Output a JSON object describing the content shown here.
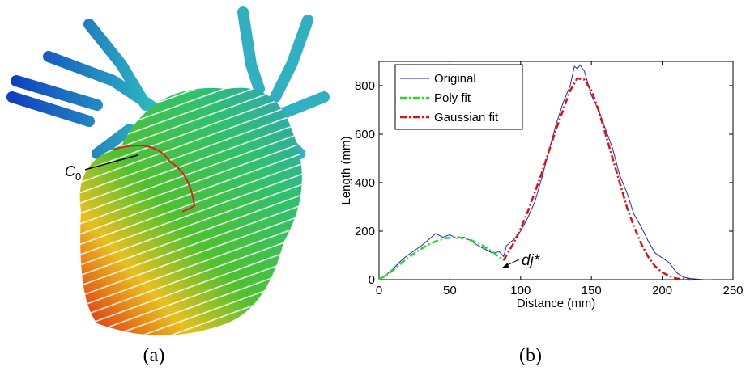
{
  "figure_a": {
    "label": "C",
    "label_sub": "0",
    "caption": "(a)"
  },
  "chart_data": {
    "type": "line",
    "caption": "(b)",
    "xlabel": "Distance (mm)",
    "ylabel": "Length (mm)",
    "xlim": [
      0,
      250
    ],
    "xticks": [
      0,
      50,
      100,
      150,
      200,
      250
    ],
    "ylim": [
      0,
      900
    ],
    "yticks": [
      0,
      200,
      400,
      600,
      800
    ],
    "legend": "upper left",
    "annotation": "dj*",
    "series": [
      {
        "name": "Original",
        "color": "#2222dd",
        "dash": "solid",
        "x": [
          0,
          5,
          10,
          15,
          20,
          25,
          30,
          35,
          40,
          45,
          50,
          55,
          60,
          65,
          70,
          75,
          80,
          85,
          88,
          90,
          95,
          100,
          105,
          110,
          115,
          120,
          125,
          130,
          135,
          138,
          140,
          142,
          145,
          150,
          155,
          160,
          165,
          170,
          175,
          180,
          185,
          190,
          195,
          200,
          205,
          210,
          215,
          220,
          225,
          230,
          235
        ],
        "values": [
          0,
          20,
          45,
          75,
          100,
          120,
          140,
          165,
          190,
          175,
          185,
          170,
          175,
          160,
          140,
          125,
          110,
          115,
          95,
          140,
          165,
          200,
          255,
          320,
          420,
          530,
          640,
          730,
          800,
          880,
          870,
          885,
          860,
          760,
          700,
          620,
          540,
          430,
          360,
          270,
          220,
          160,
          110,
          90,
          70,
          30,
          10,
          5,
          2,
          0,
          0
        ]
      },
      {
        "name": "Poly fit",
        "color": "#22dd22",
        "dash": "dashdot",
        "x": [
          0,
          8,
          16,
          24,
          32,
          40,
          48,
          56,
          64,
          72,
          80,
          88
        ],
        "values": [
          0,
          30,
          70,
          105,
          135,
          158,
          172,
          175,
          165,
          145,
          115,
          80
        ]
      },
      {
        "name": "Gaussian fit",
        "color": "#e01010",
        "dash": "dashdot",
        "x": [
          88,
          95,
          100,
          105,
          110,
          115,
          120,
          125,
          130,
          135,
          140,
          145,
          150,
          155,
          160,
          165,
          170,
          175,
          180,
          185,
          190,
          195,
          200,
          205,
          210,
          215,
          220
        ],
        "values": [
          80,
          150,
          210,
          280,
          360,
          440,
          530,
          620,
          700,
          780,
          830,
          825,
          780,
          700,
          600,
          500,
          400,
          300,
          220,
          150,
          95,
          55,
          30,
          15,
          5,
          2,
          0
        ]
      }
    ]
  }
}
